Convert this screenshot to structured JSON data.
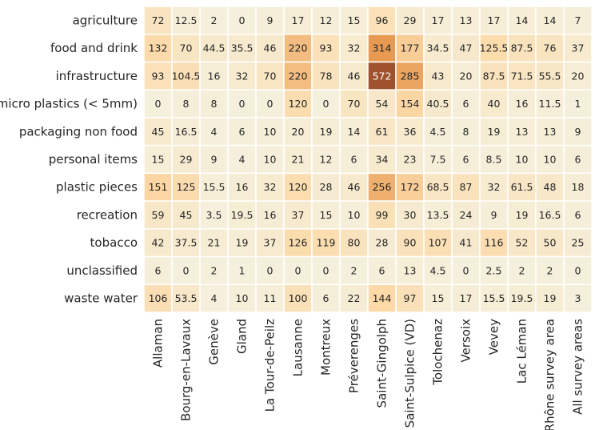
{
  "chart_data": {
    "type": "heatmap",
    "title": "",
    "xlabel": "",
    "ylabel": "",
    "rows": [
      "agriculture",
      "food and drink",
      "infrastructure",
      "micro plastics (< 5mm)",
      "packaging non food",
      "personal items",
      "plastic pieces",
      "recreation",
      "tobacco",
      "unclassified",
      "waste water"
    ],
    "columns": [
      "Allaman",
      "Bourg-en-Lavaux",
      "Genève",
      "Gland",
      "La Tour-de-Peilz",
      "Lausanne",
      "Montreux",
      "Préverenges",
      "Saint-Gingolph",
      "Saint-Sulpice (VD)",
      "Tolochenaz",
      "Versoix",
      "Vevey",
      "Lac Léman",
      "Rhône survey area",
      "All survey areas"
    ],
    "values": [
      [
        72,
        12.5,
        2,
        0,
        9,
        17,
        12,
        15,
        96,
        29,
        17,
        13,
        17,
        14,
        14,
        7
      ],
      [
        132,
        70,
        44.5,
        35.5,
        46,
        220,
        93,
        32,
        314,
        177,
        34.5,
        47,
        125.5,
        87.5,
        76,
        37
      ],
      [
        93,
        104.5,
        16,
        32,
        70,
        220,
        78,
        46,
        572,
        285,
        43,
        20,
        87.5,
        71.5,
        55.5,
        20
      ],
      [
        0,
        8,
        8,
        0,
        0,
        120,
        0,
        70,
        54,
        154,
        40.5,
        6,
        40,
        16,
        11.5,
        1
      ],
      [
        45,
        16.5,
        4,
        6,
        10,
        20,
        19,
        14,
        61,
        36,
        4.5,
        8,
        19,
        13,
        13,
        9
      ],
      [
        15,
        29,
        9,
        4,
        10,
        21,
        12,
        6,
        34,
        23,
        7.5,
        6,
        8.5,
        10,
        10,
        6
      ],
      [
        151,
        125,
        15.5,
        16,
        32,
        120,
        28,
        46,
        256,
        172,
        68.5,
        87,
        32,
        61.5,
        48,
        18
      ],
      [
        59,
        45,
        3.5,
        19.5,
        16,
        37,
        15,
        10,
        99,
        30,
        13.5,
        24,
        9,
        19,
        16.5,
        6
      ],
      [
        42,
        37.5,
        21,
        19,
        37,
        126,
        119,
        80,
        28,
        90,
        107,
        41,
        116,
        52,
        50,
        25
      ],
      [
        6,
        0,
        2,
        1,
        0,
        0,
        0,
        2,
        6,
        13,
        4.5,
        0,
        2.5,
        2,
        2,
        0
      ],
      [
        106,
        53.5,
        4,
        10,
        11,
        100,
        6,
        22,
        144,
        97,
        15,
        17,
        15.5,
        19.5,
        19,
        3
      ]
    ],
    "colormap": {
      "min_color": "#f5f0dc",
      "mid_color": "#fcd9a7",
      "high_color": "#e89a52",
      "max_color": "#a0522d"
    },
    "grid": false,
    "legend": "none"
  }
}
